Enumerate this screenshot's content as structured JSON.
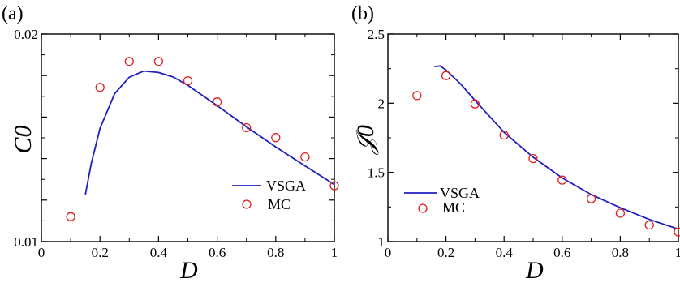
{
  "chart_data": [
    {
      "panel_label": "(a)",
      "type": "line",
      "xlabel": "D",
      "ylabel": "C0",
      "xlim": [
        0,
        1
      ],
      "ylim": [
        0.01,
        0.02
      ],
      "x_ticks": [
        0,
        0.2,
        0.4,
        0.6,
        0.8,
        1
      ],
      "x_tick_labels": [
        "0",
        "0.2",
        "0.4",
        "0.6",
        "0.8",
        "1"
      ],
      "y_ticks": [
        0.01,
        0.012,
        0.014,
        0.016,
        0.018,
        0.02
      ],
      "y_tick_labels": [
        "0.01",
        "",
        "",
        "",
        "",
        "0.02"
      ],
      "legend": {
        "placement": "bottom-right",
        "entries": [
          "VSGA",
          "MC"
        ]
      },
      "series": [
        {
          "name": "VSGA",
          "style": "line",
          "color": "#1f1fbf",
          "x": [
            0.15,
            0.17,
            0.2,
            0.25,
            0.3,
            0.35,
            0.4,
            0.45,
            0.5,
            0.6,
            0.7,
            0.8,
            0.9,
            1.0
          ],
          "y": [
            0.01227,
            0.01375,
            0.01545,
            0.01713,
            0.01792,
            0.01822,
            0.01815,
            0.01793,
            0.01753,
            0.01655,
            0.01553,
            0.01456,
            0.01365,
            0.01275
          ]
        },
        {
          "name": "MC",
          "style": "markers",
          "color": "#e0201e",
          "x": [
            0.1,
            0.2,
            0.3,
            0.4,
            0.5,
            0.6,
            0.7,
            0.8,
            0.9,
            1.0
          ],
          "y": [
            0.0112,
            0.01743,
            0.01868,
            0.01868,
            0.01775,
            0.01673,
            0.01549,
            0.01501,
            0.01408,
            0.01269
          ]
        }
      ]
    },
    {
      "panel_label": "(b)",
      "type": "line",
      "xlabel": "D",
      "ylabel": "𝒥0",
      "xlim": [
        0,
        1
      ],
      "ylim": [
        1,
        2.5
      ],
      "x_ticks": [
        0,
        0.2,
        0.4,
        0.6,
        0.8,
        1
      ],
      "x_tick_labels": [
        "0",
        "0.2",
        "0.4",
        "0.6",
        "0.8",
        "1"
      ],
      "y_ticks": [
        1,
        1.5,
        2,
        2.5
      ],
      "y_tick_labels": [
        "1",
        "1.5",
        "2",
        "2.5"
      ],
      "legend": {
        "placement": "bottom-left",
        "entries": [
          "VSGA",
          "MC"
        ]
      },
      "series": [
        {
          "name": "VSGA",
          "style": "line",
          "color": "#1f1fbf",
          "x": [
            0.16,
            0.18,
            0.2,
            0.25,
            0.3,
            0.4,
            0.5,
            0.6,
            0.7,
            0.8,
            0.9,
            1.0
          ],
          "y": [
            2.265,
            2.27,
            2.24,
            2.14,
            2.02,
            1.79,
            1.61,
            1.46,
            1.34,
            1.245,
            1.16,
            1.09
          ]
        },
        {
          "name": "MC",
          "style": "markers",
          "color": "#e0201e",
          "x": [
            0.1,
            0.2,
            0.3,
            0.4,
            0.5,
            0.6,
            0.7,
            0.8,
            0.9,
            1.0
          ],
          "y": [
            2.055,
            2.2,
            1.995,
            1.77,
            1.6,
            1.445,
            1.31,
            1.205,
            1.12,
            1.07
          ]
        }
      ]
    }
  ]
}
